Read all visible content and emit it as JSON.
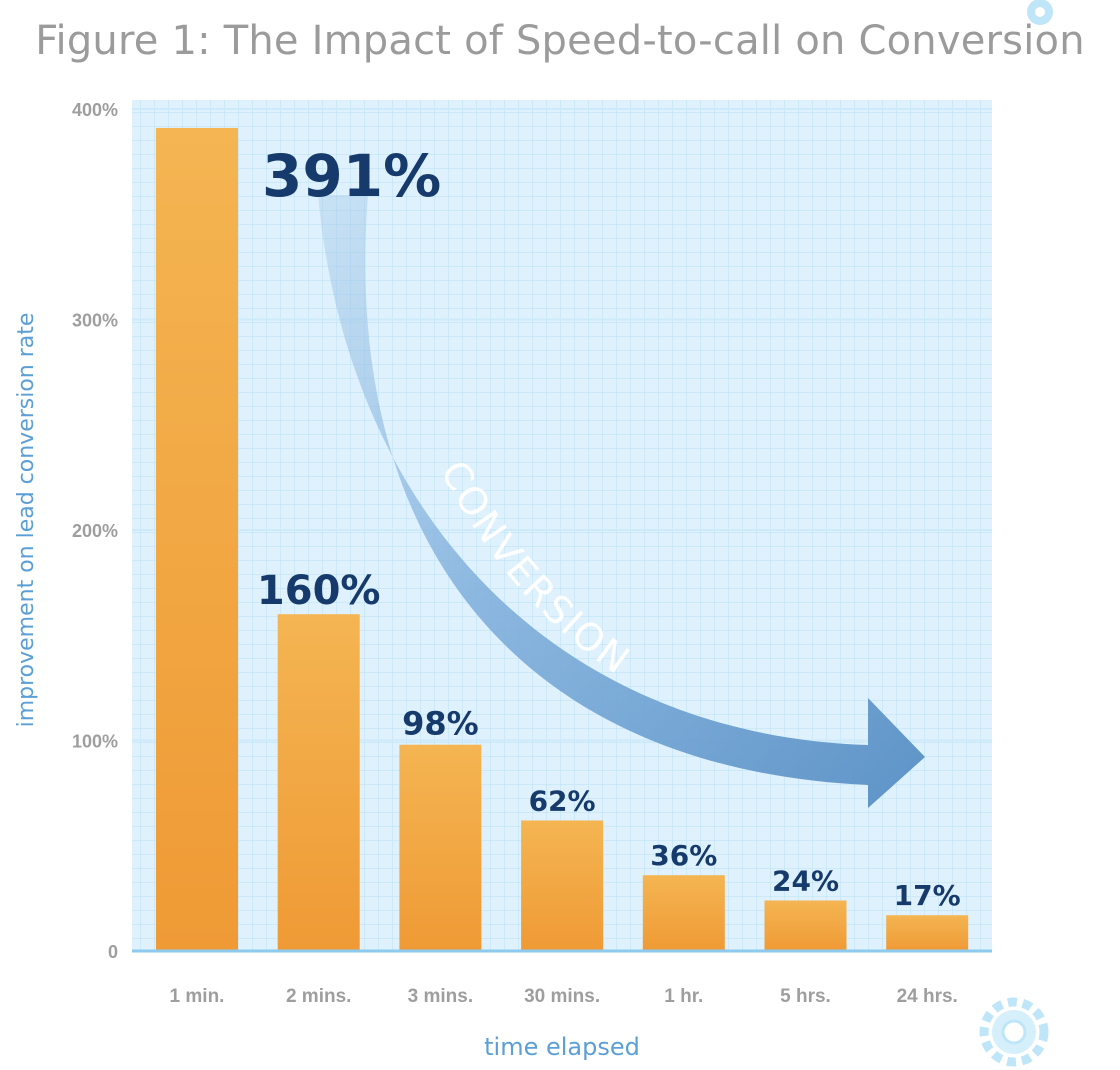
{
  "chart_data": {
    "type": "bar",
    "title": "Figure 1: The Impact of Speed-to-call on Conversion",
    "xlabel": "time elapsed",
    "ylabel": "improvement on lead conversion rate",
    "categories": [
      "1 min.",
      "2 mins.",
      "3 mins.",
      "30 mins.",
      "1 hr.",
      "5 hrs.",
      "24 hrs."
    ],
    "values": [
      391,
      160,
      98,
      62,
      36,
      24,
      17
    ],
    "data_labels": [
      "391%",
      "160%",
      "98%",
      "62%",
      "36%",
      "24%",
      "17%"
    ],
    "y_ticks": [
      0,
      100,
      200,
      300,
      400
    ],
    "y_tick_labels": [
      "0",
      "100%",
      "200%",
      "300%",
      "400%"
    ],
    "ylim": [
      0,
      400
    ],
    "annotation": "CONVERSION",
    "grid": true,
    "legend": "none"
  },
  "colors": {
    "bar_top": "#f4b552",
    "bar_bottom": "#ef9a35",
    "plot_bg": "#dff1fc",
    "grid_minor": "#b6dff6",
    "grid_major": "#cdeafb",
    "axis_line": "#8dcaee",
    "data_label": "#163a6b",
    "axis_label": "#5b9fd6",
    "tick_label": "#9e9e9e",
    "arrow": "#5d93c7",
    "gear": "#bfe6f8"
  },
  "icons": {
    "top_right": "gear-icon",
    "bottom_right": "gear-icon"
  }
}
